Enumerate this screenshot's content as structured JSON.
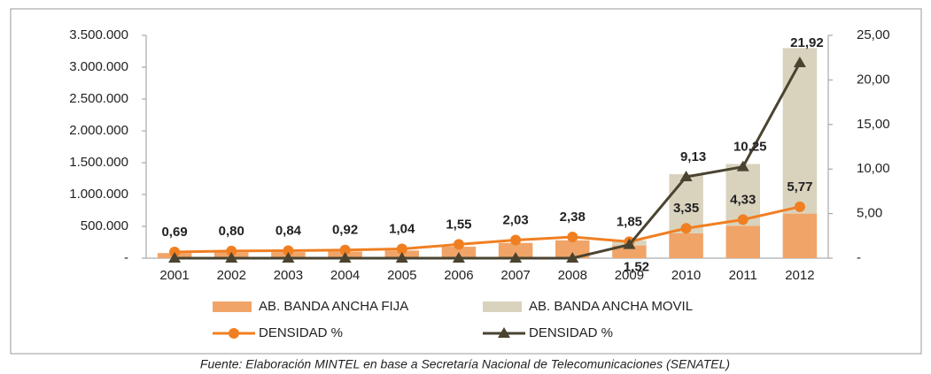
{
  "chart_data": {
    "type": "bar",
    "categories": [
      "2001",
      "2002",
      "2003",
      "2004",
      "2005",
      "2006",
      "2007",
      "2008",
      "2009",
      "2010",
      "2011",
      "2012"
    ],
    "series": [
      {
        "name": "AB. BANDA ANCHA FIJA",
        "type": "bar",
        "color": "#f0a468",
        "values": [
          80000,
          90000,
          95000,
          105000,
          120000,
          180000,
          240000,
          280000,
          200000,
          390000,
          510000,
          700000
        ]
      },
      {
        "name": "AB. BANDA ANCHA MOVIL",
        "type": "bar",
        "color": "#d9d3bd",
        "values": [
          0,
          0,
          0,
          0,
          0,
          0,
          0,
          0,
          80000,
          930000,
          970000,
          2600000
        ]
      },
      {
        "name": "DENSIDAD %",
        "type": "line",
        "axis": "y2",
        "color": "#f07f22",
        "marker": "circle",
        "values": [
          0.69,
          0.8,
          0.84,
          0.92,
          1.04,
          1.55,
          2.03,
          2.38,
          1.85,
          3.35,
          4.33,
          5.77
        ],
        "value_labels": [
          "0,69",
          "0,80",
          "0,84",
          "0,92",
          "1,04",
          "1,55",
          "2,03",
          "2,38",
          "1,85",
          "3,35",
          "4,33",
          "5,77"
        ]
      },
      {
        "name": "DENSIDAD %",
        "type": "line",
        "axis": "y2",
        "color": "#4a4330",
        "marker": "triangle",
        "values": [
          0,
          0,
          0,
          0,
          0,
          0,
          0,
          0,
          1.52,
          9.13,
          10.25,
          21.92
        ],
        "value_labels": [
          null,
          null,
          null,
          null,
          null,
          null,
          null,
          null,
          "1,52",
          "9,13",
          "10,25",
          "21,92"
        ]
      }
    ],
    "ylim": [
      0,
      3500000
    ],
    "yticks": [
      {
        "value": 0,
        "label": "-"
      },
      {
        "value": 500000,
        "label": "500.000"
      },
      {
        "value": 1000000,
        "label": "1.000.000"
      },
      {
        "value": 1500000,
        "label": "1.500.000"
      },
      {
        "value": 2000000,
        "label": "2.000.000"
      },
      {
        "value": 2500000,
        "label": "2.500.000"
      },
      {
        "value": 3000000,
        "label": "3.000.000"
      },
      {
        "value": 3500000,
        "label": "3.500.000"
      }
    ],
    "y2lim": [
      0,
      25
    ],
    "y2ticks": [
      {
        "value": 0,
        "label": "-"
      },
      {
        "value": 5,
        "label": "5,00"
      },
      {
        "value": 10,
        "label": "10,00"
      },
      {
        "value": 15,
        "label": "15,00"
      },
      {
        "value": 20,
        "label": "20,00"
      },
      {
        "value": 25,
        "label": "25,00"
      }
    ],
    "source": "Fuente: Elaboración MINTEL en base a Secretaría Nacional de Telecomunicaciones (SENATEL)"
  }
}
